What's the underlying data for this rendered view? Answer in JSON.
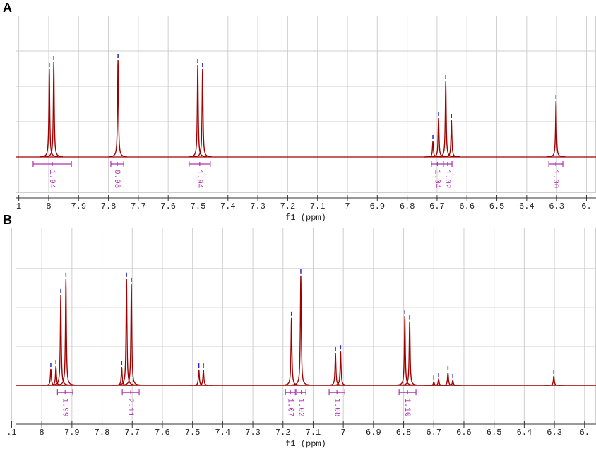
{
  "chart_data": [
    {
      "type": "spectrum",
      "label": "A",
      "x_label": "f1 (ppm)",
      "color": "#a00000",
      "marker_color": "#2a2ad0",
      "integral_color": "#b030b0",
      "grid": true,
      "xlim": [
        8.111,
        6.168
      ],
      "ylim": [
        -1,
        4
      ],
      "yticks": [
        0,
        1,
        2,
        3
      ],
      "xticks": [
        {
          "value": 8.1,
          "label": "1"
        },
        8.0,
        7.9,
        7.8,
        7.7,
        7.6,
        7.5,
        7.4,
        7.3,
        7.2,
        7.1,
        7.0,
        6.9,
        6.8,
        6.7,
        6.6,
        6.5,
        6.4,
        6.3,
        {
          "value": 6.2,
          "label": "6."
        }
      ],
      "peaks": {
        "x": [
          7.998,
          7.983,
          7.768,
          7.501,
          7.485,
          6.714,
          6.695,
          6.671,
          6.652,
          6.302
        ],
        "values": [
          2.48,
          2.68,
          2.74,
          2.6,
          2.48,
          0.44,
          1.1,
          2.14,
          1.04,
          1.58
        ]
      },
      "integrals": {
        "x0": [
          8.052,
          7.792,
          7.53,
          6.719,
          6.679,
          6.326
        ],
        "x1": [
          7.924,
          7.749,
          7.459,
          6.679,
          6.65,
          6.279
        ],
        "values": [
          1.94,
          0.98,
          1.94,
          1.04,
          1.02,
          1.0
        ],
        "value_labels": [
          "1.94",
          "0.98",
          "1.94",
          "1.04",
          "1.02",
          "1.00"
        ]
      }
    },
    {
      "type": "spectrum",
      "label": "B",
      "x_label": "f1 (ppm)",
      "color": "#a00000",
      "marker_color": "#2a2ad0",
      "integral_color": "#b030b0",
      "grid": true,
      "xlim": [
        8.087,
        6.162
      ],
      "ylim": [
        -0.96,
        4.05
      ],
      "yticks": [
        0,
        1,
        2,
        3
      ],
      "xticks": [
        {
          "value": 8.1,
          "label": ".1"
        },
        8.0,
        7.9,
        7.8,
        7.7,
        7.6,
        7.5,
        7.4,
        7.3,
        7.2,
        7.1,
        7.0,
        6.9,
        6.8,
        6.7,
        6.6,
        6.5,
        6.4,
        6.3,
        {
          "value": 6.2,
          "label": "6."
        }
      ],
      "peaks": {
        "x": [
          7.97,
          7.953,
          7.937,
          7.92,
          7.735,
          7.719,
          7.703,
          7.479,
          7.464,
          7.172,
          7.141,
          7.026,
          7.009,
          6.796,
          6.78,
          6.7,
          6.684,
          6.653,
          6.637,
          6.302
        ],
        "values": [
          0.42,
          0.49,
          2.31,
          2.73,
          0.47,
          2.73,
          2.6,
          0.4,
          0.4,
          1.73,
          2.82,
          0.82,
          0.87,
          1.78,
          1.64,
          0.09,
          0.16,
          0.33,
          0.13,
          0.24
        ]
      },
      "integrals": {
        "x0": [
          7.948,
          7.733,
          7.192,
          7.155,
          7.047,
          6.815
        ],
        "x1": [
          7.897,
          7.677,
          7.159,
          7.124,
          6.995,
          6.759
        ],
        "values": [
          1.99,
          2.11,
          1.07,
          1.02,
          1.08,
          1.1
        ],
        "value_labels": [
          "1.99",
          "2.11",
          "1.07",
          "1.02",
          "1.08",
          "1.10"
        ]
      }
    }
  ]
}
